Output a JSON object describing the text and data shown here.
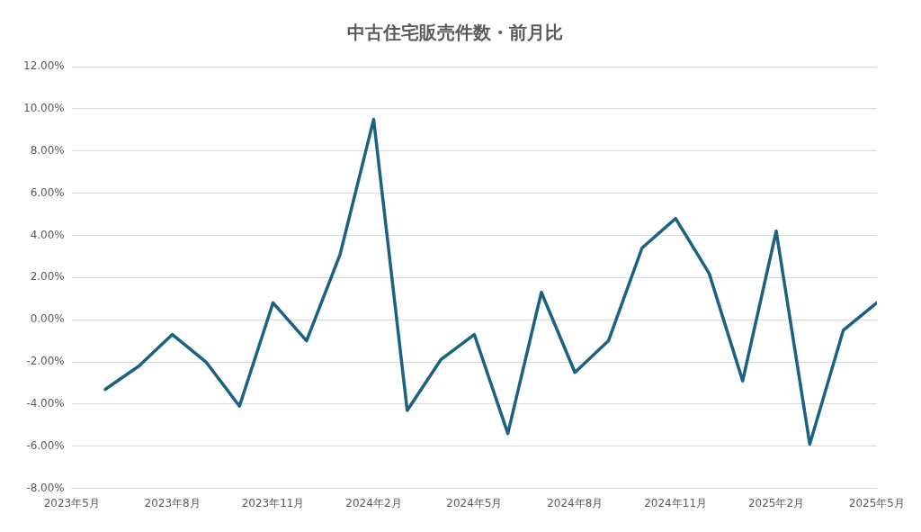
{
  "chart_data": {
    "type": "line",
    "title": "中古住宅販売件数・前月比",
    "x": [
      "2023-06",
      "2023-07",
      "2023-08",
      "2023-09",
      "2023-10",
      "2023-11",
      "2023-12",
      "2024-01",
      "2024-02",
      "2024-03",
      "2024-04",
      "2024-05",
      "2024-06",
      "2024-07",
      "2024-08",
      "2024-09",
      "2024-10",
      "2024-11",
      "2024-12",
      "2025-01",
      "2025-02",
      "2025-03",
      "2025-04",
      "2025-05"
    ],
    "series": [
      {
        "color": "#1b6183",
        "values": [
          -3.3,
          -2.2,
          -0.7,
          -2.0,
          -4.1,
          0.8,
          -1.0,
          3.1,
          9.5,
          -4.3,
          -1.9,
          -0.7,
          -5.4,
          1.3,
          -2.5,
          -1.0,
          3.4,
          4.8,
          2.2,
          -2.9,
          4.2,
          -5.9,
          -0.5,
          0.8
        ]
      }
    ],
    "xlim": [
      "2023-05",
      "2025-05"
    ],
    "xticks": [
      {
        "value": "2023-05",
        "label": "2023年5月"
      },
      {
        "value": "2023-08",
        "label": "2023年8月"
      },
      {
        "value": "2023-11",
        "label": "2023年11月"
      },
      {
        "value": "2024-02",
        "label": "2024年2月"
      },
      {
        "value": "2024-05",
        "label": "2024年5月"
      },
      {
        "value": "2024-08",
        "label": "2024年8月"
      },
      {
        "value": "2024-11",
        "label": "2024年11月"
      },
      {
        "value": "2025-02",
        "label": "2025年2月"
      },
      {
        "value": "2025-05",
        "label": "2025年5月"
      }
    ],
    "ylim": [
      -8,
      12
    ],
    "yticks": [
      {
        "value": -8,
        "label": "-8.00%"
      },
      {
        "value": -6,
        "label": "-6.00%"
      },
      {
        "value": -4,
        "label": "-4.00%"
      },
      {
        "value": -2,
        "label": "-2.00%"
      },
      {
        "value": 0,
        "label": "0.00%"
      },
      {
        "value": 2,
        "label": "2.00%"
      },
      {
        "value": 4,
        "label": "4.00%"
      },
      {
        "value": 6,
        "label": "6.00%"
      },
      {
        "value": 8,
        "label": "8.00%"
      },
      {
        "value": 10,
        "label": "10.00%"
      },
      {
        "value": 12,
        "label": "12.00%"
      }
    ],
    "grid": "y",
    "marker": "none",
    "line_style": "solid",
    "legend": false
  }
}
